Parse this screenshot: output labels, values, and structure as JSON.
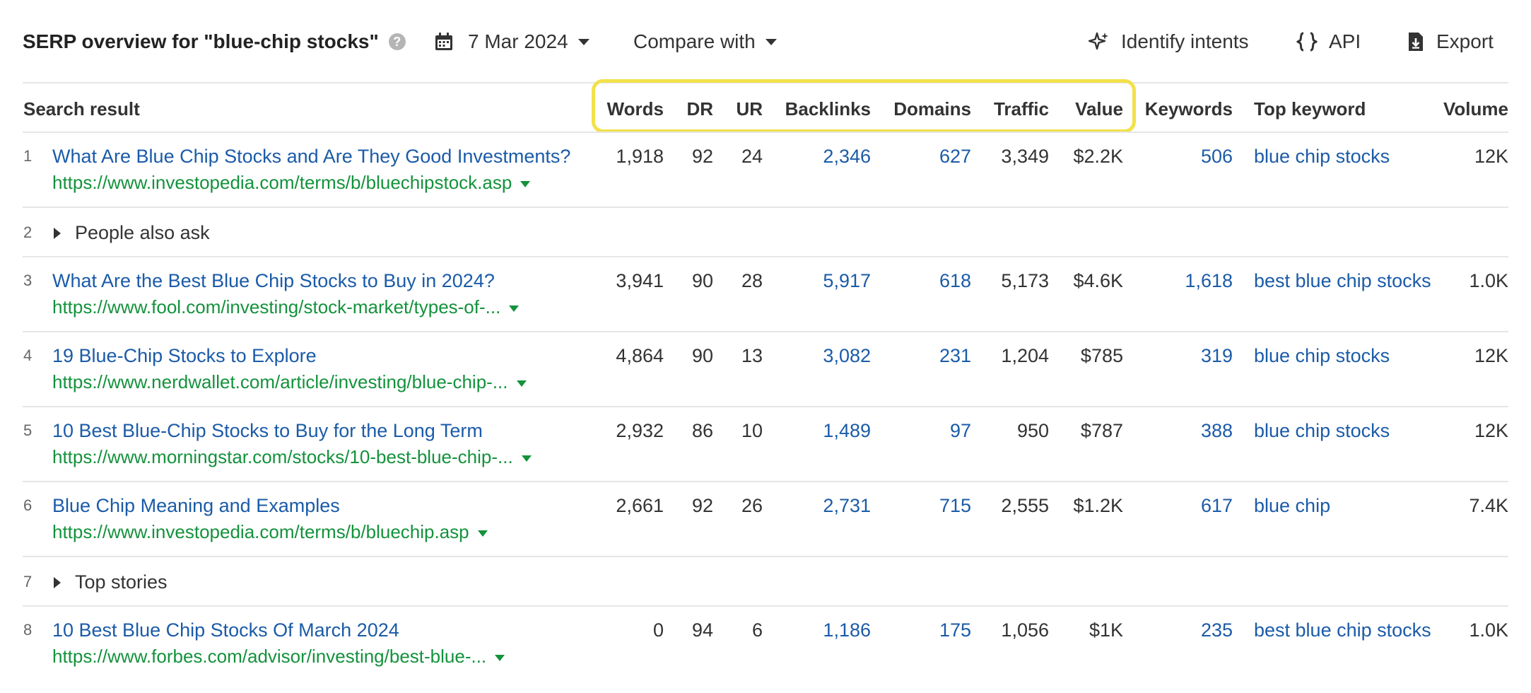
{
  "header": {
    "title": "SERP overview for \"blue-chip stocks\"",
    "help": "?",
    "date": "7 Mar 2024",
    "compare": "Compare with",
    "identify": "Identify intents",
    "api": "API",
    "export": "Export"
  },
  "columns": {
    "search_result": "Search result",
    "words": "Words",
    "dr": "DR",
    "ur": "UR",
    "backlinks": "Backlinks",
    "domains": "Domains",
    "traffic": "Traffic",
    "value": "Value",
    "keywords": "Keywords",
    "top_keyword": "Top keyword",
    "volume": "Volume"
  },
  "rows": [
    {
      "num": "1",
      "title": "What Are Blue Chip Stocks and Are They Good Investments?",
      "url": "https://www.investopedia.com/terms/b/bluechipstock.asp",
      "words": "1,918",
      "dr": "92",
      "ur": "24",
      "backlinks": "2,346",
      "domains": "627",
      "traffic": "3,349",
      "value": "$2.2K",
      "keywords": "506",
      "top_keyword": "blue chip stocks",
      "volume": "12K"
    },
    {
      "num": "2",
      "label": "People also ask"
    },
    {
      "num": "3",
      "title": "What Are the Best Blue Chip Stocks to Buy in 2024?",
      "url": "https://www.fool.com/investing/stock-market/types-of-...",
      "words": "3,941",
      "dr": "90",
      "ur": "28",
      "backlinks": "5,917",
      "domains": "618",
      "traffic": "5,173",
      "value": "$4.6K",
      "keywords": "1,618",
      "top_keyword": "best blue chip stocks",
      "volume": "1.0K"
    },
    {
      "num": "4",
      "title": "19 Blue-Chip Stocks to Explore",
      "url": "https://www.nerdwallet.com/article/investing/blue-chip-...",
      "words": "4,864",
      "dr": "90",
      "ur": "13",
      "backlinks": "3,082",
      "domains": "231",
      "traffic": "1,204",
      "value": "$785",
      "keywords": "319",
      "top_keyword": "blue chip stocks",
      "volume": "12K"
    },
    {
      "num": "5",
      "title": "10 Best Blue-Chip Stocks to Buy for the Long Term",
      "url": "https://www.morningstar.com/stocks/10-best-blue-chip-...",
      "words": "2,932",
      "dr": "86",
      "ur": "10",
      "backlinks": "1,489",
      "domains": "97",
      "traffic": "950",
      "value": "$787",
      "keywords": "388",
      "top_keyword": "blue chip stocks",
      "volume": "12K"
    },
    {
      "num": "6",
      "title": "Blue Chip Meaning and Examples",
      "url": "https://www.investopedia.com/terms/b/bluechip.asp",
      "words": "2,661",
      "dr": "92",
      "ur": "26",
      "backlinks": "2,731",
      "domains": "715",
      "traffic": "2,555",
      "value": "$1.2K",
      "keywords": "617",
      "top_keyword": "blue chip",
      "volume": "7.4K"
    },
    {
      "num": "7",
      "label": "Top stories"
    },
    {
      "num": "8",
      "title": "10 Best Blue Chip Stocks Of March 2024",
      "url": "https://www.forbes.com/advisor/investing/best-blue-...",
      "words": "0",
      "dr": "94",
      "ur": "6",
      "backlinks": "1,186",
      "domains": "175",
      "traffic": "1,056",
      "value": "$1K",
      "keywords": "235",
      "top_keyword": "best blue chip stocks",
      "volume": "1.0K"
    }
  ]
}
